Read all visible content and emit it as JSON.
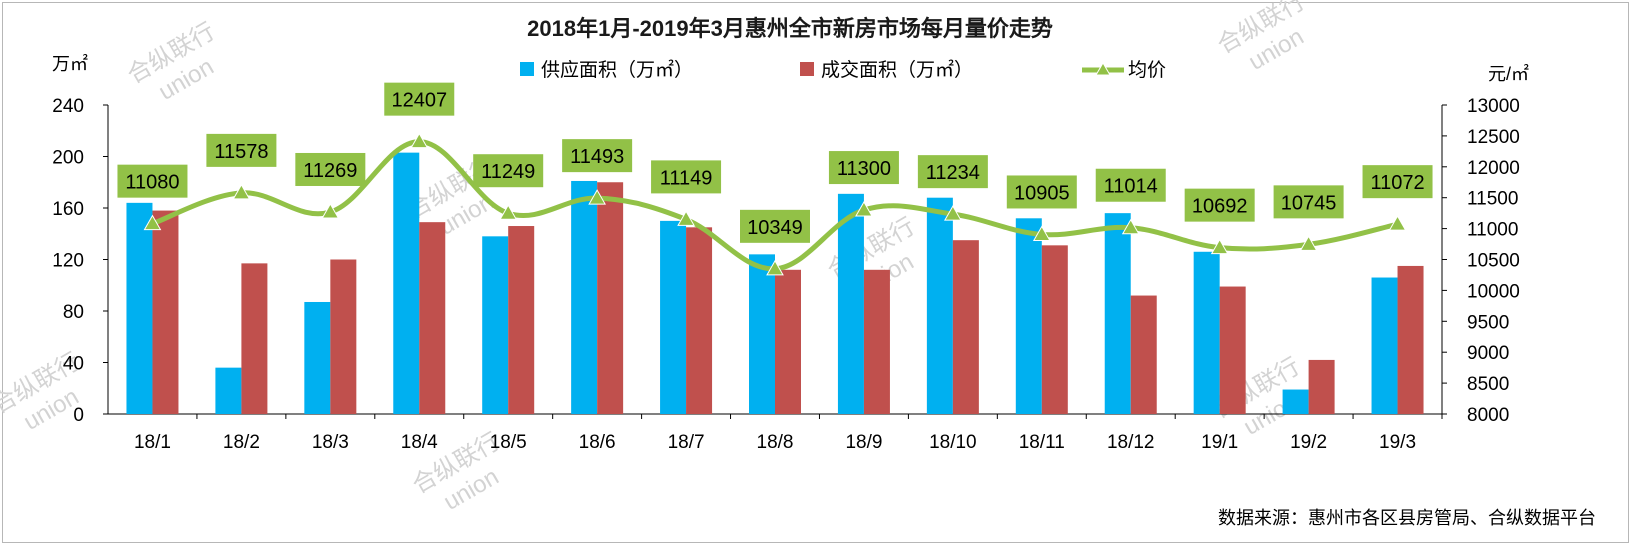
{
  "chart_data": {
    "type": "bar",
    "title": "2018年1月-2019年3月惠州全市新房市场每月量价走势",
    "categories": [
      "18/1",
      "18/2",
      "18/3",
      "18/4",
      "18/5",
      "18/6",
      "18/7",
      "18/8",
      "18/9",
      "18/10",
      "18/11",
      "18/12",
      "19/1",
      "19/2",
      "19/3"
    ],
    "series": [
      {
        "name": "供应面积（万㎡）",
        "type": "bar",
        "axis": "left",
        "color": "#00b0f0",
        "values": [
          164,
          36,
          87,
          203,
          138,
          181,
          150,
          124,
          171,
          168,
          152,
          156,
          126,
          19,
          106
        ]
      },
      {
        "name": "成交面积（万㎡）",
        "type": "bar",
        "axis": "left",
        "color": "#c0504d",
        "values": [
          158,
          117,
          120,
          149,
          146,
          180,
          145,
          112,
          112,
          135,
          131,
          92,
          99,
          42,
          115
        ]
      },
      {
        "name": "均价",
        "type": "line",
        "axis": "right",
        "color": "#92c147",
        "values": [
          11080,
          11578,
          11269,
          12407,
          11249,
          11493,
          11149,
          10349,
          11300,
          11234,
          10905,
          11014,
          10692,
          10745,
          11072
        ]
      }
    ],
    "y_left": {
      "unit": "万㎡",
      "min": 0,
      "max": 240,
      "ticks": [
        0,
        40,
        80,
        120,
        160,
        200,
        240
      ]
    },
    "y_right": {
      "unit": "元/㎡",
      "min": 8000,
      "max": 13000,
      "ticks": [
        8000,
        8500,
        9000,
        9500,
        10000,
        10500,
        11000,
        11500,
        12000,
        12500,
        13000
      ]
    },
    "legend_position": "top",
    "grid": false,
    "source": "数据来源：惠州市各区县房管局、合纵数据平台"
  },
  "watermark": {
    "line1": "合纵联行",
    "line2": "union"
  }
}
